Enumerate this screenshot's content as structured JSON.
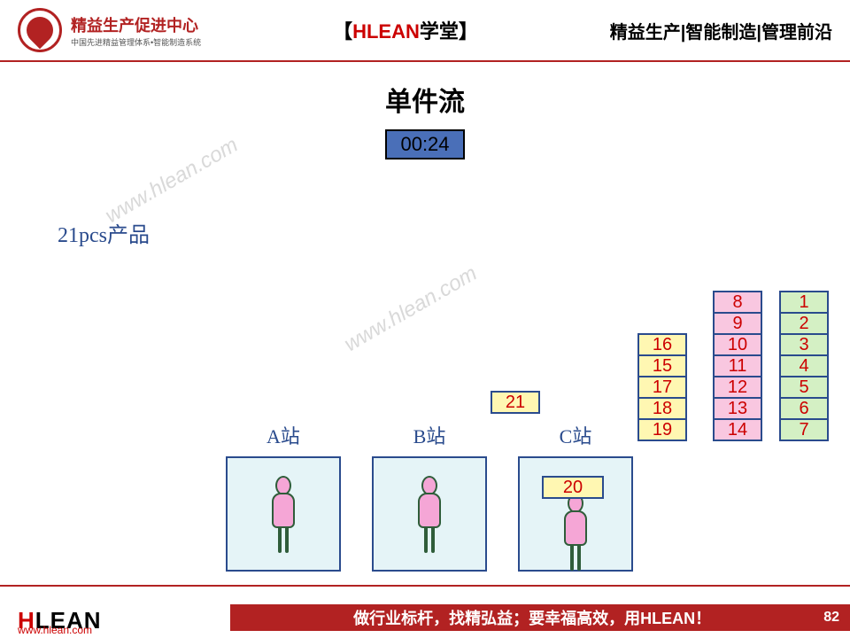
{
  "header": {
    "logo_main": "精益生产促进中心",
    "logo_sub": "中国先进精益管理体系•智能制造系统",
    "center_prefix": "【",
    "center_red": "HLEAN",
    "center_black": "学堂",
    "center_suffix": "】",
    "right": "精益生产|智能制造|管理前沿"
  },
  "title": "单件流",
  "timer": "00:24",
  "product_count": "21pcs产品",
  "watermark": "www.hlean.com",
  "stations": {
    "a": "A站",
    "b": "B站",
    "c": "C站"
  },
  "chips": {
    "c21": "21",
    "c20": "20",
    "stack_yellow": [
      "16",
      "15",
      "17",
      "18",
      "19"
    ],
    "stack_pink": [
      "8",
      "9",
      "10",
      "11",
      "12",
      "13",
      "14"
    ],
    "stack_green": [
      "1",
      "2",
      "3",
      "4",
      "5",
      "6",
      "7"
    ]
  },
  "colors": {
    "yellow": "#fff7b2",
    "pink": "#f9c7e0",
    "green": "#d4f0c4",
    "timer_bg": "#4a6fb8",
    "brand_red": "#b22222",
    "station_bg": "#e5f4f7",
    "border": "#2a4b8d"
  },
  "footer": {
    "logo": "HLEAN",
    "url": "www.hlean.com",
    "slogan": "做行业标杆，找精弘益；要幸福高效，用HLEAN！",
    "page": "82"
  }
}
